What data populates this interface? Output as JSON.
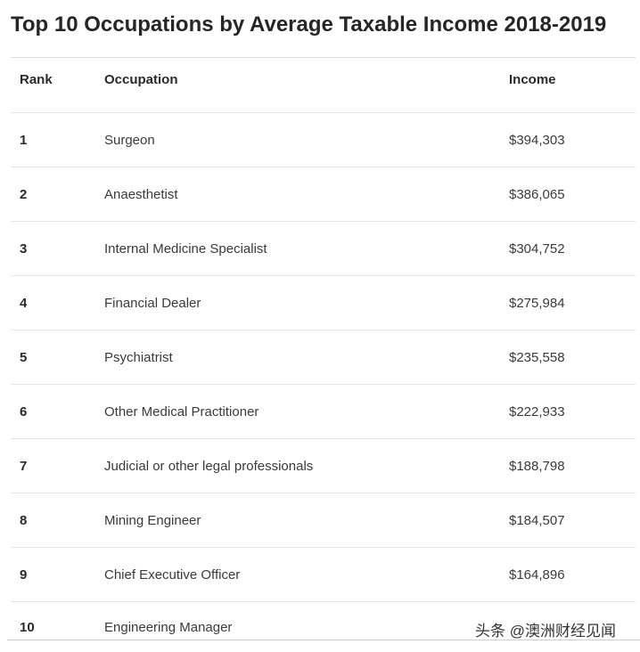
{
  "title": "Top 10 Occupations by Average Taxable Income 2018-2019",
  "table": {
    "headers": {
      "rank": "Rank",
      "occupation": "Occupation",
      "income": "Income"
    },
    "rows": [
      {
        "rank": "1",
        "occupation": "Surgeon",
        "income": "$394,303"
      },
      {
        "rank": "2",
        "occupation": "Anaesthetist",
        "income": "$386,065"
      },
      {
        "rank": "3",
        "occupation": "Internal Medicine Specialist",
        "income": "$304,752"
      },
      {
        "rank": "4",
        "occupation": "Financial Dealer",
        "income": "$275,984"
      },
      {
        "rank": "5",
        "occupation": "Psychiatrist",
        "income": "$235,558"
      },
      {
        "rank": "6",
        "occupation": "Other Medical Practitioner",
        "income": "$222,933"
      },
      {
        "rank": "7",
        "occupation": "Judicial or other legal professionals",
        "income": "$188,798"
      },
      {
        "rank": "8",
        "occupation": "Mining Engineer",
        "income": "$184,507"
      },
      {
        "rank": "9",
        "occupation": "Chief Executive Officer",
        "income": "$164,896"
      },
      {
        "rank": "10",
        "occupation": "Engineering Manager",
        "income": ""
      }
    ]
  },
  "watermark": "头条 @澳洲财经见闻"
}
